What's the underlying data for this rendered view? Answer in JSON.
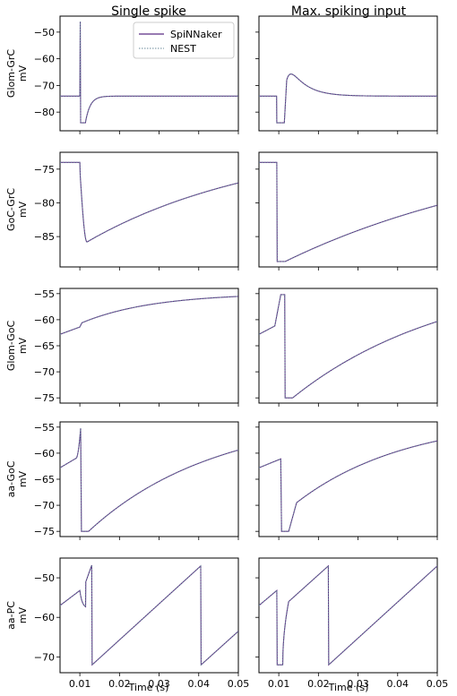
{
  "colors": {
    "spinnaker": "#5b2c83",
    "nest": "#6a8a9a",
    "frame": "#000000"
  },
  "columns": [
    "Single spike",
    "Max. spiking input"
  ],
  "xlabel": "Time (s)",
  "legend": {
    "entries": [
      "SpiNNaker",
      "NEST"
    ],
    "placement": "top-right of first panel"
  },
  "chart_data": {
    "type": "line",
    "xlim": [
      0.005,
      0.05
    ],
    "xticks": [
      "0.01",
      "0.02",
      "0.03",
      "0.04",
      "0.05"
    ],
    "xtick_values": [
      0.01,
      0.02,
      0.03,
      0.04,
      0.05
    ],
    "rows": [
      {
        "ylabel": "Glom-GrC\nmV",
        "ylim": [
          -87,
          -44
        ],
        "yticks": [
          -80,
          -70,
          -60,
          -50
        ],
        "panels": [
          {
            "kind": "glom_grc_single"
          },
          {
            "kind": "glom_grc_max"
          }
        ]
      },
      {
        "ylabel": "GoC-GrC\nmV",
        "ylim": [
          -89.5,
          -72.5
        ],
        "yticks": [
          -85,
          -80,
          -75
        ],
        "panels": [
          {
            "kind": "goc_grc_single"
          },
          {
            "kind": "goc_grc_max"
          }
        ]
      },
      {
        "ylabel": "Glom-GoC\nmV",
        "ylim": [
          -76,
          -54
        ],
        "yticks": [
          -75,
          -70,
          -65,
          -60,
          -55
        ],
        "panels": [
          {
            "kind": "glom_goc_single"
          },
          {
            "kind": "glom_goc_max"
          }
        ]
      },
      {
        "ylabel": "aa-GoC\nmV",
        "ylim": [
          -76,
          -54
        ],
        "yticks": [
          -75,
          -70,
          -65,
          -60,
          -55
        ],
        "panels": [
          {
            "kind": "aa_goc_single"
          },
          {
            "kind": "aa_goc_max"
          }
        ]
      },
      {
        "ylabel": "aa-PC\nmV",
        "ylim": [
          -74,
          -45
        ],
        "yticks": [
          -70,
          -60,
          -50
        ],
        "panels": [
          {
            "kind": "aa_pc_single"
          },
          {
            "kind": "aa_pc_max"
          }
        ]
      }
    ]
  }
}
